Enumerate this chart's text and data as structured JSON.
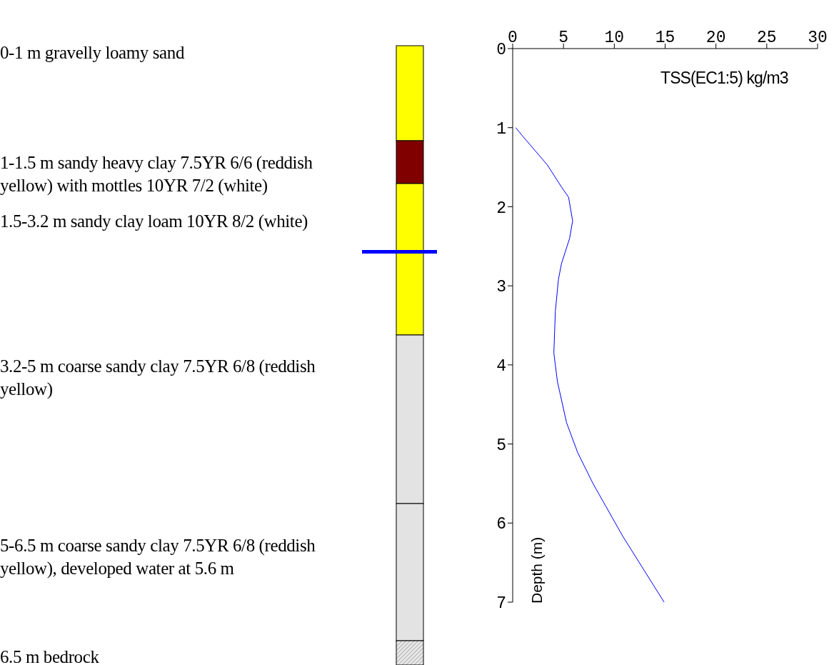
{
  "chart_data": {
    "type": "line",
    "xlabel": "TSS(EC1:5) kg/m3",
    "ylabel": "Depth (m)",
    "xlim": [
      0,
      30
    ],
    "xticks": [
      0,
      5,
      10,
      15,
      20,
      25,
      30
    ],
    "ylim": [
      7,
      0
    ],
    "yticks": [
      0,
      1,
      2,
      3,
      4,
      5,
      6,
      7
    ],
    "grid": false,
    "marker": "none",
    "line_style": "solid",
    "series": [
      {
        "color": "#0000ff",
        "x": [
          0.3,
          1.0,
          3.4,
          4.8,
          5.5,
          5.9,
          5.6,
          4.8,
          4.5,
          4.2,
          4.05,
          4.4,
          5.3,
          6.4,
          7.9,
          10.8,
          14.9
        ],
        "values": [
          1,
          1.11,
          1.47,
          1.75,
          1.88,
          2.18,
          2.4,
          2.72,
          2.92,
          3.32,
          3.85,
          4.21,
          4.73,
          5.11,
          5.5,
          6.16,
          7
        ]
      }
    ],
    "annotations": [
      "0-1 m gravelly loamy sand",
      "1-1.5 m sandy heavy clay 7.5YR 6/6 (reddish yellow) with mottles 10YR 7/2 (white)",
      "1.5-3.2 m sandy clay loam 10YR 8/2 (white)",
      "3.2-5 m coarse sandy clay 7.5YR 6/8 (reddish yellow)",
      "5-6.5 m coarse sandy clay 7.5YR 6/8 (reddish yellow), developed water at 5.6 m",
      "6.5 m bedrock"
    ]
  }
}
